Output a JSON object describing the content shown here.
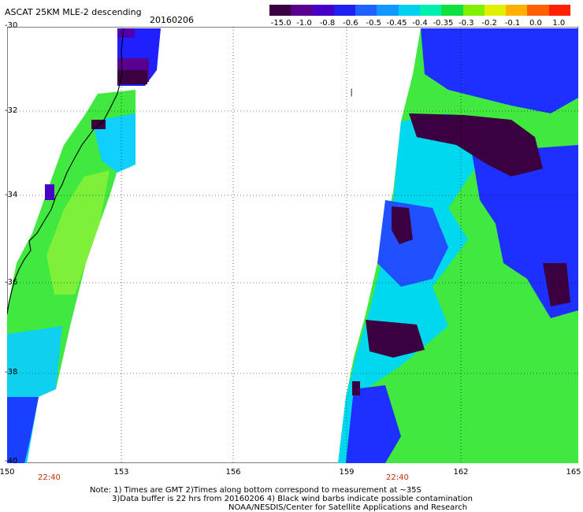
{
  "header": {
    "title": "ASCAT 25KM MLE-2 descending",
    "date": "20160206"
  },
  "colorbar": {
    "labels": [
      "-15.0",
      "-1.0",
      "-0.8",
      "-0.6",
      "-0.5",
      "-0.45",
      "-0.4",
      "-0.35",
      "-0.3",
      "-0.2",
      "-0.1",
      "0.0",
      "1.0"
    ],
    "colors": [
      "#3a0040",
      "#5a0090",
      "#4800c8",
      "#2020f0",
      "#2060ff",
      "#1098ff",
      "#00d0f0",
      "#00f0b0",
      "#10e040",
      "#80f000",
      "#e0f000",
      "#ffb000",
      "#ff6000",
      "#ff2000"
    ]
  },
  "map": {
    "lat_labels": [
      "-30",
      "-32",
      "-34",
      "-36",
      "-38",
      "-40"
    ],
    "lon_labels": [
      "150",
      "153",
      "156",
      "159",
      "162",
      "165"
    ],
    "time_labels": [
      "22:40",
      "22:40"
    ],
    "marker": "❘"
  },
  "notes": [
    "Note: 1) Times are GMT 2)Times along bottom correspond to measurement at ~35S",
    "3)Data buffer is 22 hrs from 20160206 4) Black wind barbs indicate possible contamination",
    "NOAA/NESDIS/Center for Satellite Applications and Research"
  ]
}
